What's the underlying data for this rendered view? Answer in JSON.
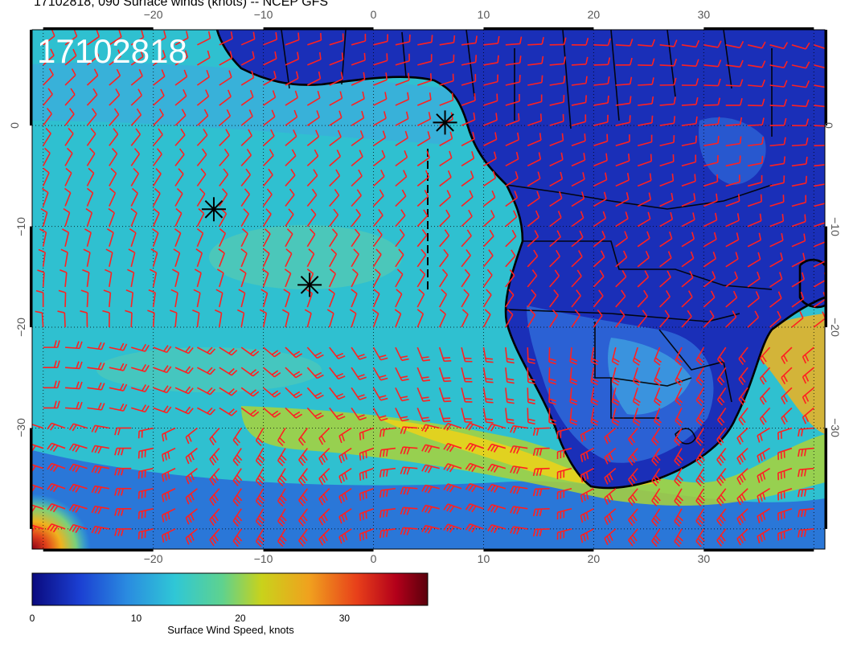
{
  "header": {
    "title": "17102818, 090 Surface winds (knots) -- NCEP GFS"
  },
  "map": {
    "stamp": "17102818",
    "lon_ticks": [
      "−20",
      "−10",
      "0",
      "10",
      "20",
      "30"
    ],
    "lat_ticks": [
      "0",
      "−10",
      "−20",
      "−30"
    ],
    "extent": {
      "lon_min": -31,
      "lon_max": 41,
      "lat_min": -42,
      "lat_max": 9.5
    },
    "grid_step_degrees": 10,
    "grid": "dotted",
    "barb_color": "#ff2020",
    "coast_color": "#000000",
    "markers": [
      {
        "lon": 6.5,
        "lat": 0.3,
        "type": "asterisk"
      },
      {
        "lon": -14.5,
        "lat": -8.3,
        "type": "asterisk"
      },
      {
        "lon": -5.8,
        "lat": -15.8,
        "type": "asterisk"
      }
    ]
  },
  "colorbar": {
    "min": 0,
    "max": 38,
    "ticks": [
      "0",
      "10",
      "20",
      "30"
    ],
    "tick_values": [
      0,
      10,
      20,
      30
    ],
    "label": "Surface Wind Speed, knots",
    "colors": [
      "#0a0a7e",
      "#1b3fd2",
      "#2a8be0",
      "#2fc7d6",
      "#5ed28f",
      "#c9d21b",
      "#f0a11e",
      "#e8401a",
      "#b3001a",
      "#5a000c"
    ]
  }
}
